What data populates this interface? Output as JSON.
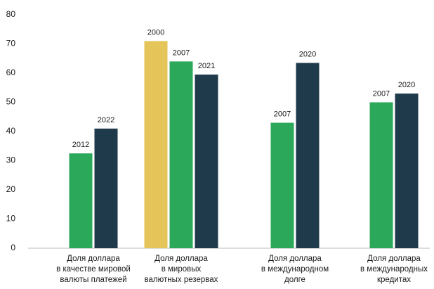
{
  "chart_data": {
    "type": "bar",
    "ylim": [
      0,
      80
    ],
    "yticks": [
      0,
      10,
      20,
      30,
      40,
      50,
      60,
      70,
      80
    ],
    "groups": [
      {
        "category": [
          "Доля доллара",
          "в качестве мировой",
          "валюты платежей"
        ],
        "bars": [
          {
            "label": "2012",
            "value": 32.5,
            "color": "#2ba85a"
          },
          {
            "label": "2022",
            "value": 41,
            "color": "#1f3a4a"
          }
        ]
      },
      {
        "category": [
          "Доля доллара",
          "в мировых",
          "валютных резервах"
        ],
        "bars": [
          {
            "label": "2000",
            "value": 71,
            "color": "#e5c55a"
          },
          {
            "label": "2007",
            "value": 64,
            "color": "#2ba85a"
          },
          {
            "label": "2021",
            "value": 59.5,
            "color": "#1f3a4a"
          }
        ]
      },
      {
        "category": [
          "Доля доллара",
          "в международном",
          "долге"
        ],
        "bars": [
          {
            "label": "2007",
            "value": 43,
            "color": "#2ba85a"
          },
          {
            "label": "2020",
            "value": 63.5,
            "color": "#1f3a4a"
          }
        ]
      },
      {
        "category": [
          "Доля доллара",
          "в международных",
          "кредитах"
        ],
        "bars": [
          {
            "label": "2007",
            "value": 50,
            "color": "#2ba85a"
          },
          {
            "label": "2020",
            "value": 53,
            "color": "#1f3a4a"
          }
        ]
      }
    ]
  }
}
